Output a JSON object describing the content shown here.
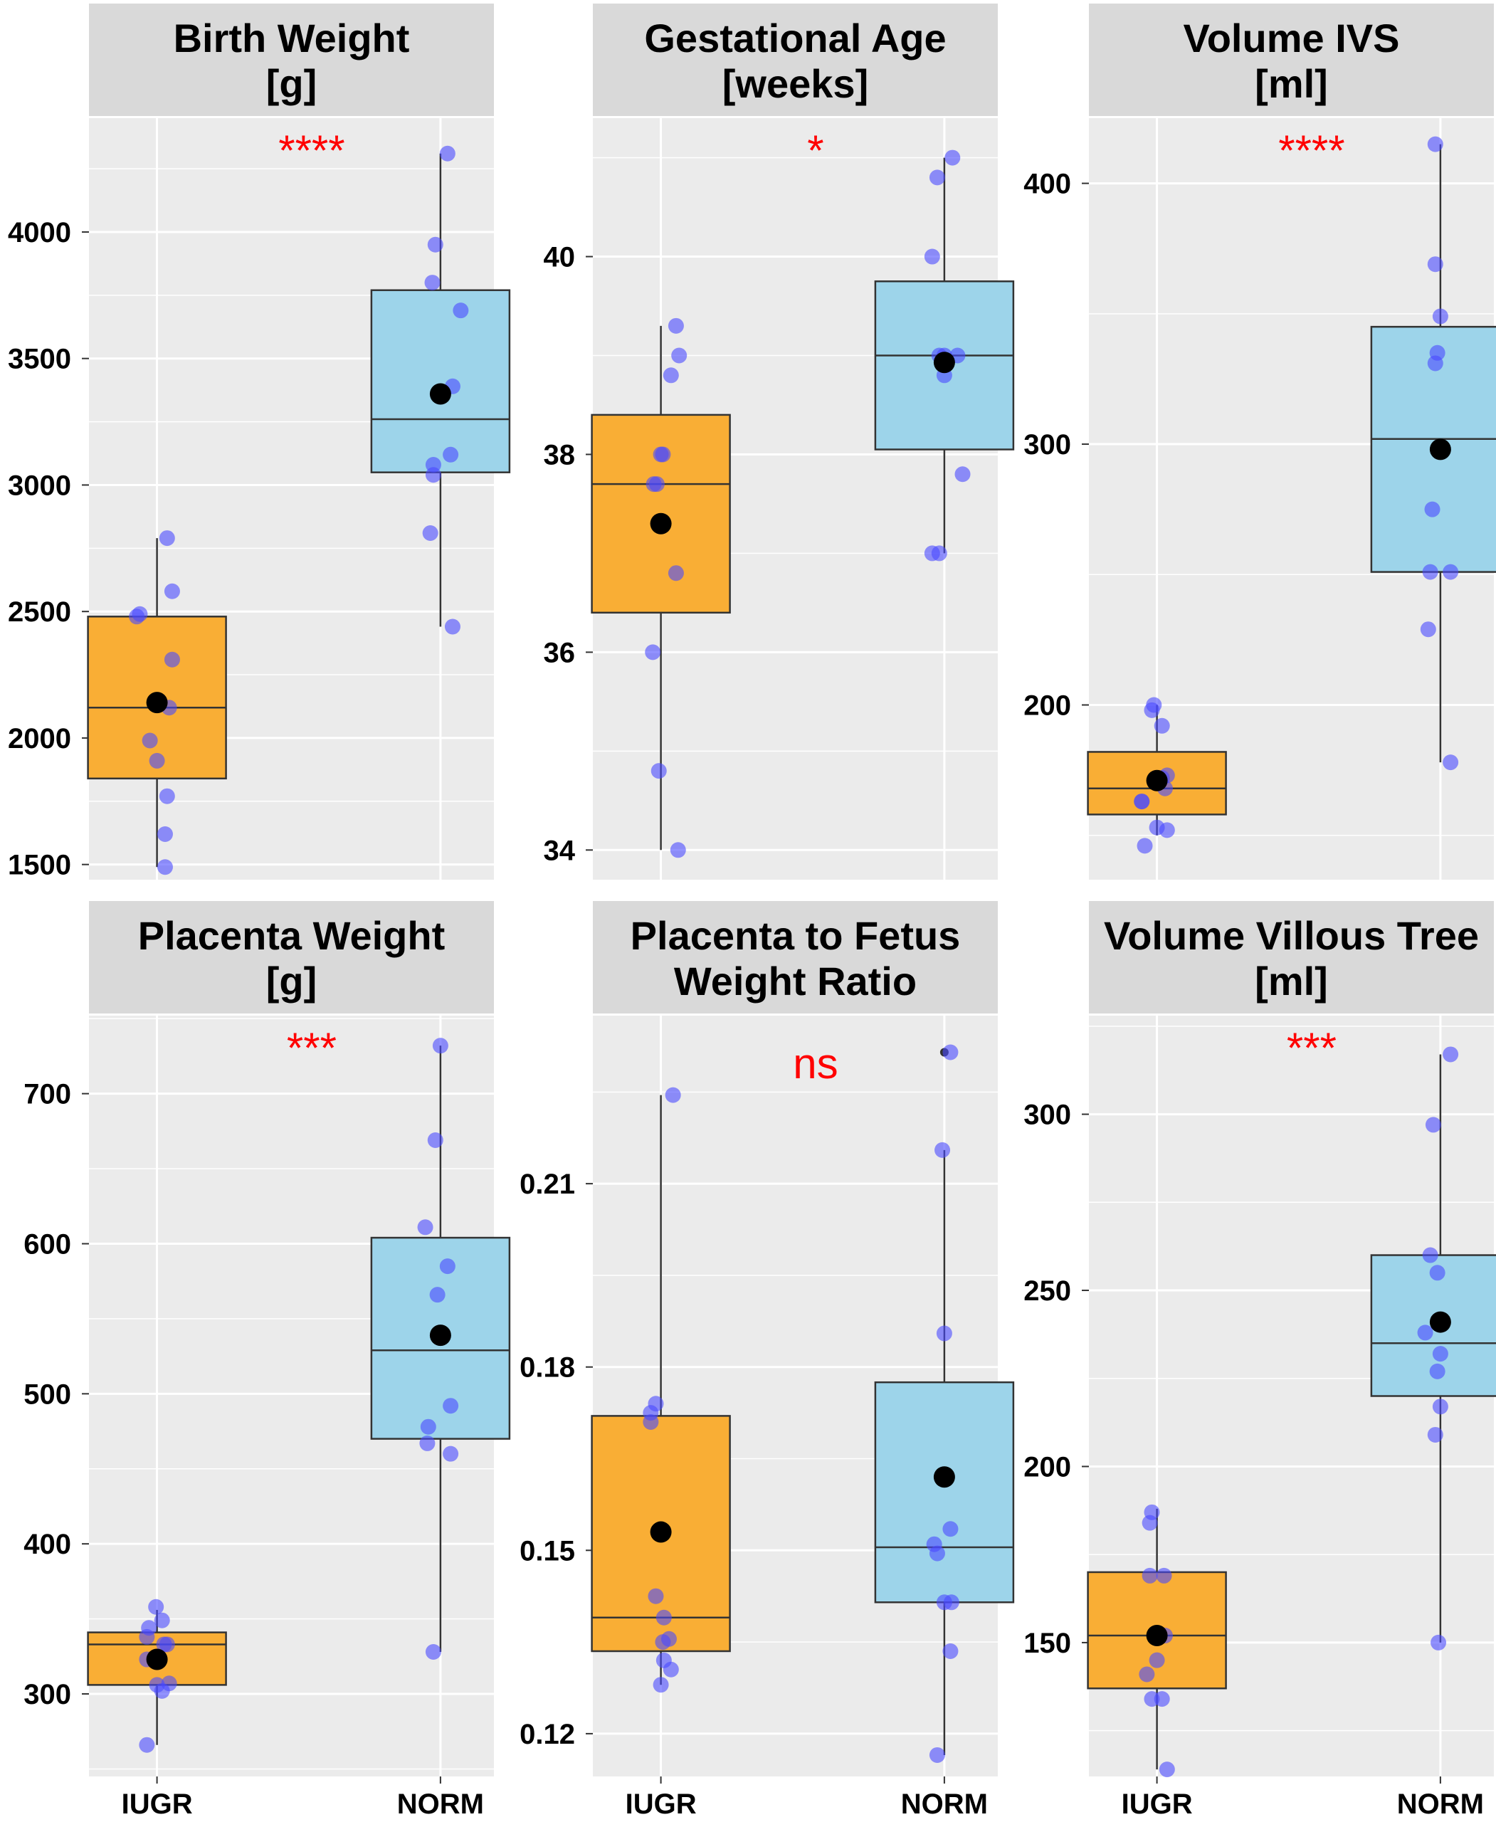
{
  "chart_data": [
    {
      "type": "box",
      "title": "Birth Weight",
      "subtitle": "[g]",
      "significance": "****",
      "categories": [
        "IUGR",
        "NORM"
      ],
      "ylim": [
        1440,
        4450
      ],
      "yticks": [
        1500,
        2000,
        2500,
        3000,
        3500,
        4000
      ],
      "boxes": [
        {
          "group": "IUGR",
          "q1": 1840,
          "median": 2120,
          "q3": 2480,
          "whisker_low": 1490,
          "whisker_high": 2790,
          "mean": 2140,
          "fill": "#f9ae35"
        },
        {
          "group": "NORM",
          "q1": 3050,
          "median": 3260,
          "q3": 3770,
          "whisker_low": 2440,
          "whisker_high": 4310,
          "mean": 3360,
          "fill": "#9dd4ea"
        }
      ],
      "points": [
        {
          "group": "IUGR",
          "values": [
            2790,
            2580,
            2490,
            2480,
            2310,
            2120,
            1990,
            1910,
            1770,
            1620,
            1490
          ],
          "jitter": [
            0.1,
            0.15,
            -0.17,
            -0.2,
            0.15,
            0.12,
            -0.07,
            0.0,
            0.1,
            0.08,
            0.08
          ]
        },
        {
          "group": "NORM",
          "values": [
            4310,
            3950,
            3800,
            3690,
            3390,
            3120,
            3080,
            3040,
            2810,
            2440
          ],
          "jitter": [
            0.07,
            -0.05,
            -0.08,
            0.2,
            0.12,
            0.1,
            -0.07,
            -0.07,
            -0.1,
            0.12
          ]
        }
      ]
    },
    {
      "type": "box",
      "title": "Gestational Age",
      "subtitle": "[weeks]",
      "significance": "*",
      "categories": [
        "IUGR",
        "NORM"
      ],
      "ylim": [
        33.7,
        41.4
      ],
      "yticks": [
        34,
        36,
        38,
        40
      ],
      "boxes": [
        {
          "group": "IUGR",
          "q1": 36.4,
          "median": 37.7,
          "q3": 38.4,
          "whisker_low": 34.0,
          "whisker_high": 39.3,
          "mean": 37.3,
          "fill": "#f9ae35"
        },
        {
          "group": "NORM",
          "q1": 38.05,
          "median": 39.0,
          "q3": 39.75,
          "whisker_low": 37.0,
          "whisker_high": 41.0,
          "mean": 38.93,
          "fill": "#9dd4ea"
        }
      ],
      "points": [
        {
          "group": "IUGR",
          "values": [
            39.3,
            39.0,
            38.8,
            38.0,
            38.0,
            37.7,
            37.7,
            36.8,
            36.0,
            34.8,
            34.0
          ],
          "jitter": [
            0.15,
            0.18,
            0.1,
            0.0,
            0.02,
            -0.07,
            -0.04,
            0.15,
            -0.08,
            -0.02,
            0.17
          ]
        },
        {
          "group": "NORM",
          "values": [
            41.0,
            40.8,
            40.0,
            39.0,
            39.0,
            39.0,
            38.8,
            37.8,
            37.0,
            37.0
          ],
          "jitter": [
            0.08,
            -0.07,
            -0.12,
            -0.05,
            0.0,
            0.13,
            0.0,
            0.18,
            -0.12,
            -0.05
          ]
        }
      ]
    },
    {
      "type": "box",
      "title": "Volume IVS",
      "subtitle": "[ml]",
      "significance": "****",
      "categories": [
        "IUGR",
        "NORM"
      ],
      "ylim": [
        133,
        425
      ],
      "yticks": [
        200,
        300,
        400
      ],
      "boxes": [
        {
          "group": "IUGR",
          "q1": 158,
          "median": 168,
          "q3": 182,
          "whisker_low": 150,
          "whisker_high": 200,
          "mean": 171,
          "fill": "#f9ae35"
        },
        {
          "group": "NORM",
          "q1": 251,
          "median": 302,
          "q3": 345,
          "whisker_low": 178,
          "whisker_high": 415,
          "mean": 298,
          "fill": "#9dd4ea"
        }
      ],
      "points": [
        {
          "group": "IUGR",
          "values": [
            200,
            198,
            192,
            173,
            172,
            168,
            163,
            163,
            153,
            152,
            146
          ],
          "jitter": [
            -0.03,
            -0.05,
            0.05,
            0.1,
            0.05,
            0.08,
            -0.15,
            -0.15,
            0.0,
            0.1,
            -0.12
          ]
        },
        {
          "group": "NORM",
          "values": [
            415,
            369,
            349,
            335,
            331,
            275,
            251,
            251,
            229,
            178
          ],
          "jitter": [
            -0.05,
            -0.05,
            0.0,
            -0.03,
            -0.05,
            -0.08,
            -0.1,
            0.1,
            -0.12,
            0.1
          ]
        }
      ]
    },
    {
      "type": "box",
      "title": "Placenta Weight",
      "subtitle": "[g]",
      "significance": "***",
      "categories": [
        "IUGR",
        "NORM"
      ],
      "ylim": [
        245,
        752
      ],
      "yticks": [
        300,
        400,
        500,
        600,
        700
      ],
      "boxes": [
        {
          "group": "IUGR",
          "q1": 306,
          "median": 333,
          "q3": 341,
          "whisker_low": 266,
          "whisker_high": 356,
          "mean": 323,
          "fill": "#f9ae35"
        },
        {
          "group": "NORM",
          "q1": 470,
          "median": 529,
          "q3": 604,
          "whisker_low": 328,
          "whisker_high": 732,
          "mean": 539,
          "fill": "#9dd4ea"
        }
      ],
      "points": [
        {
          "group": "IUGR",
          "values": [
            358,
            349,
            344,
            338,
            333,
            333,
            323,
            306,
            307,
            302,
            266
          ],
          "jitter": [
            -0.01,
            0.05,
            -0.08,
            -0.1,
            0.07,
            0.1,
            -0.1,
            0.0,
            0.12,
            0.05,
            -0.1
          ]
        },
        {
          "group": "NORM",
          "values": [
            732,
            669,
            611,
            585,
            566,
            492,
            478,
            467,
            460,
            328
          ],
          "jitter": [
            0.0,
            -0.05,
            -0.15,
            0.07,
            -0.03,
            0.1,
            -0.12,
            -0.13,
            0.1,
            -0.07
          ]
        }
      ]
    },
    {
      "type": "box",
      "title": "Placenta to Fetus",
      "subtitle": "Weight Ratio",
      "significance": "ns",
      "categories": [
        "IUGR",
        "NORM"
      ],
      "ylim": [
        0.113,
        0.2375
      ],
      "yticks": [
        0.12,
        0.15,
        0.18,
        0.21
      ],
      "boxes": [
        {
          "group": "IUGR",
          "q1": 0.1335,
          "median": 0.139,
          "q3": 0.172,
          "whisker_low": 0.128,
          "whisker_high": 0.2245,
          "mean": 0.153,
          "fill": "#f9ae35"
        },
        {
          "group": "NORM",
          "q1": 0.1415,
          "median": 0.1505,
          "q3": 0.1775,
          "whisker_low": 0.1165,
          "whisker_high": 0.2155,
          "mean": 0.162,
          "fill": "#9dd4ea"
        },
        {
          "group": "NORM-outlier",
          "value": 0.2315
        }
      ],
      "points": [
        {
          "group": "IUGR",
          "values": [
            0.2245,
            0.174,
            0.1725,
            0.171,
            0.1425,
            0.139,
            0.1355,
            0.135,
            0.132,
            0.1305,
            0.128
          ],
          "jitter": [
            0.12,
            -0.05,
            -0.1,
            -0.1,
            -0.05,
            0.03,
            0.08,
            0.02,
            0.03,
            0.1,
            0.0
          ]
        },
        {
          "group": "NORM",
          "values": [
            0.2315,
            0.2155,
            0.1855,
            0.1535,
            0.151,
            0.1495,
            0.1415,
            0.1415,
            0.1335,
            0.1165
          ],
          "jitter": [
            0.06,
            -0.02,
            0.0,
            0.06,
            -0.1,
            -0.07,
            0.0,
            0.07,
            0.06,
            -0.07
          ]
        }
      ]
    },
    {
      "type": "box",
      "title": "Volume Villous Tree",
      "subtitle": "[ml]",
      "significance": "***",
      "categories": [
        "IUGR",
        "NORM"
      ],
      "ylim": [
        112,
        328
      ],
      "yticks": [
        150,
        200,
        250,
        300
      ],
      "boxes": [
        {
          "group": "IUGR",
          "q1": 137,
          "median": 152,
          "q3": 170,
          "whisker_low": 114,
          "whisker_high": 188,
          "mean": 152,
          "fill": "#f9ae35"
        },
        {
          "group": "NORM",
          "q1": 220,
          "median": 235,
          "q3": 260,
          "whisker_low": 150,
          "whisker_high": 317,
          "mean": 241,
          "fill": "#9dd4ea"
        }
      ],
      "points": [
        {
          "group": "IUGR",
          "values": [
            187,
            184,
            169,
            169,
            152,
            152,
            145,
            141,
            134,
            134,
            114
          ],
          "jitter": [
            -0.05,
            -0.07,
            -0.07,
            0.07,
            0.08,
            0.0,
            0.0,
            -0.1,
            -0.05,
            0.05,
            0.1
          ]
        },
        {
          "group": "NORM",
          "values": [
            317,
            297,
            260,
            255,
            238,
            232,
            227,
            217,
            209,
            150
          ],
          "jitter": [
            0.1,
            -0.07,
            -0.1,
            -0.03,
            -0.15,
            0.0,
            -0.03,
            0.0,
            -0.05,
            -0.02
          ]
        }
      ]
    }
  ],
  "colors": {
    "panel_bg": "#ebebeb",
    "strip_bg": "#d9d9d9",
    "grid": "#ffffff",
    "iugr_fill": "#f9ae35",
    "norm_fill": "#9dd4ea",
    "point": "#4a4aff",
    "mean": "#000000",
    "significance": "#ff0000"
  }
}
